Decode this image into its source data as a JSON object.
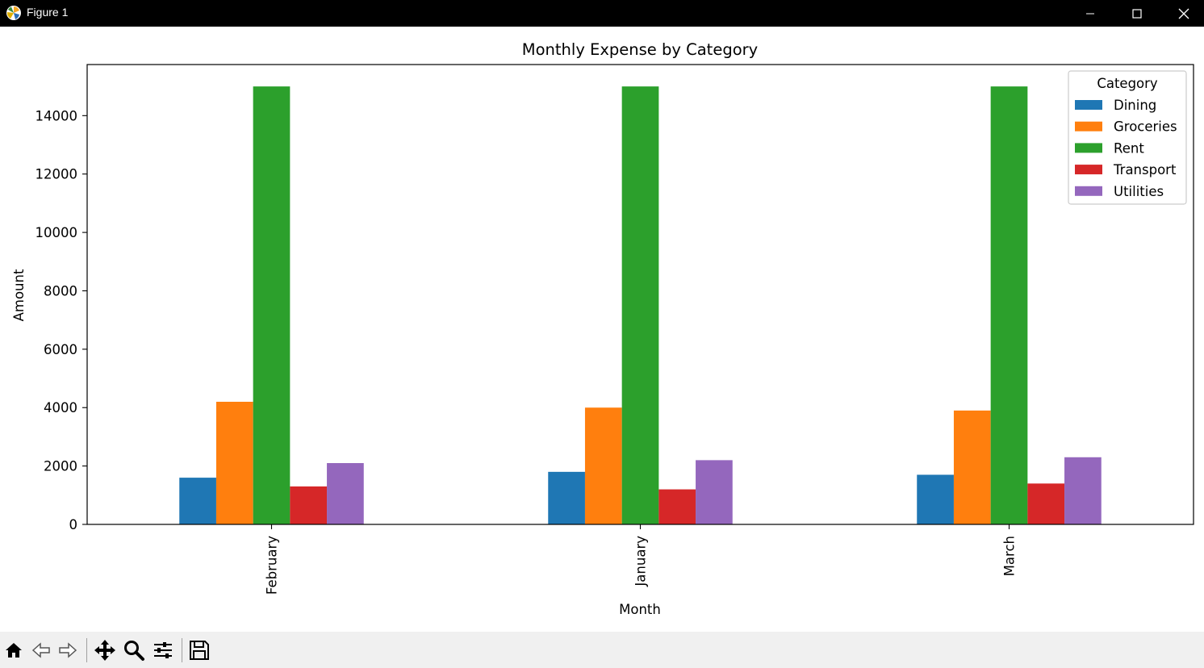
{
  "window": {
    "title": "Figure 1",
    "icons": {
      "app": "matplotlib-icon",
      "minimize": "minimize-icon",
      "maximize": "maximize-icon",
      "close": "close-icon"
    }
  },
  "toolbar": {
    "buttons": [
      "home-icon",
      "back-icon",
      "forward-icon",
      "pan-icon",
      "zoom-icon",
      "configure-subplots-icon",
      "save-icon"
    ]
  },
  "chart_data": {
    "type": "bar",
    "title": "Monthly Expense by Category",
    "xlabel": "Month",
    "ylabel": "Amount",
    "categories": [
      "February",
      "January",
      "March"
    ],
    "ylim": [
      0,
      15750
    ],
    "yticks": [
      0,
      2000,
      4000,
      6000,
      8000,
      10000,
      12000,
      14000
    ],
    "legend_title": "Category",
    "legend_position": "top-right",
    "grid": false,
    "series": [
      {
        "name": "Dining",
        "color": "#1f77b4",
        "values": [
          1600,
          1800,
          1700
        ]
      },
      {
        "name": "Groceries",
        "color": "#ff7f0e",
        "values": [
          4200,
          4000,
          3900
        ]
      },
      {
        "name": "Rent",
        "color": "#2ca02c",
        "values": [
          15000,
          15000,
          15000
        ]
      },
      {
        "name": "Transport",
        "color": "#d62728",
        "values": [
          1300,
          1200,
          1400
        ]
      },
      {
        "name": "Utilities",
        "color": "#9467bd",
        "values": [
          2100,
          2200,
          2300
        ]
      }
    ]
  }
}
